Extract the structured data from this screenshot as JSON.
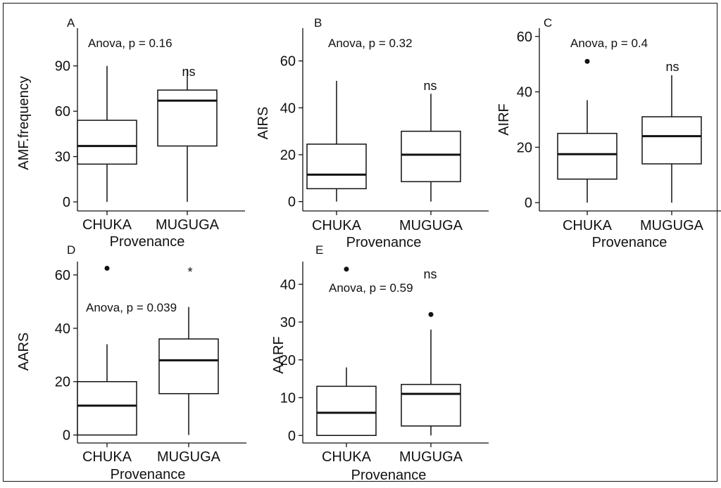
{
  "chart_data": [
    {
      "type": "box",
      "panel_label": "A",
      "ylabel": "AMF.frequency",
      "xlabel": "Provenance",
      "categories": [
        "CHUKA",
        "MUGUGA"
      ],
      "yticks": [
        0,
        30,
        60,
        90
      ],
      "ylim": [
        -6,
        115
      ],
      "annotation": "Anova, p = 0.16",
      "significance": "ns",
      "boxes": [
        {
          "category": "CHUKA",
          "min": 0,
          "q1": 25,
          "median": 37,
          "q3": 54,
          "max": 90,
          "outliers": []
        },
        {
          "category": "MUGUGA",
          "min": 0,
          "q1": 37,
          "median": 67,
          "q3": 74,
          "max": 88,
          "outliers": []
        }
      ]
    },
    {
      "type": "box",
      "panel_label": "B",
      "ylabel": "AIRS",
      "xlabel": "Provenance",
      "categories": [
        "CHUKA",
        "MUGUGA"
      ],
      "yticks": [
        0,
        20,
        40,
        60
      ],
      "ylim": [
        -4,
        74
      ],
      "annotation": "Anova, p = 0.32",
      "significance": "ns",
      "boxes": [
        {
          "category": "CHUKA",
          "min": 0,
          "q1": 5.5,
          "median": 11.5,
          "q3": 24.5,
          "max": 51.5,
          "outliers": []
        },
        {
          "category": "MUGUGA",
          "min": 0,
          "q1": 8.5,
          "median": 20,
          "q3": 30,
          "max": 46,
          "outliers": []
        }
      ]
    },
    {
      "type": "box",
      "panel_label": "C",
      "ylabel": "AIRF",
      "xlabel": "Provenance",
      "categories": [
        "CHUKA",
        "MUGUGA"
      ],
      "yticks": [
        0,
        20,
        40,
        60
      ],
      "ylim": [
        -3,
        63
      ],
      "annotation": "Anova, p = 0.4",
      "significance": "ns",
      "boxes": [
        {
          "category": "CHUKA",
          "min": 0,
          "q1": 8.5,
          "median": 17.5,
          "q3": 25,
          "max": 37,
          "outliers": [
            51
          ]
        },
        {
          "category": "MUGUGA",
          "min": 0,
          "q1": 14,
          "median": 24,
          "q3": 31,
          "max": 46,
          "outliers": []
        }
      ]
    },
    {
      "type": "box",
      "panel_label": "D",
      "ylabel": "AARS",
      "xlabel": "Provenance",
      "categories": [
        "CHUKA",
        "MUGUGA"
      ],
      "yticks": [
        0,
        20,
        40,
        60
      ],
      "ylim": [
        -3,
        65
      ],
      "annotation": "Anova, p = 0.039",
      "significance": "*",
      "boxes": [
        {
          "category": "CHUKA",
          "min": 0,
          "q1": 0,
          "median": 11,
          "q3": 20,
          "max": 34,
          "outliers": [
            62.5
          ]
        },
        {
          "category": "MUGUGA",
          "min": 0,
          "q1": 15.5,
          "median": 28,
          "q3": 36,
          "max": 48,
          "outliers": []
        }
      ]
    },
    {
      "type": "box",
      "panel_label": "E",
      "ylabel": "AARF",
      "xlabel": "Provenance",
      "categories": [
        "CHUKA",
        "MUGUGA"
      ],
      "yticks": [
        0,
        10,
        20,
        30,
        40
      ],
      "ylim": [
        -2,
        46
      ],
      "annotation": "Anova, p = 0.59",
      "significance": "ns",
      "boxes": [
        {
          "category": "CHUKA",
          "min": 0,
          "q1": 0,
          "median": 6,
          "q3": 13,
          "max": 18,
          "outliers": [
            44
          ]
        },
        {
          "category": "MUGUGA",
          "min": 0,
          "q1": 2.5,
          "median": 11,
          "q3": 13.5,
          "max": 28,
          "outliers": [
            32
          ]
        }
      ]
    }
  ]
}
